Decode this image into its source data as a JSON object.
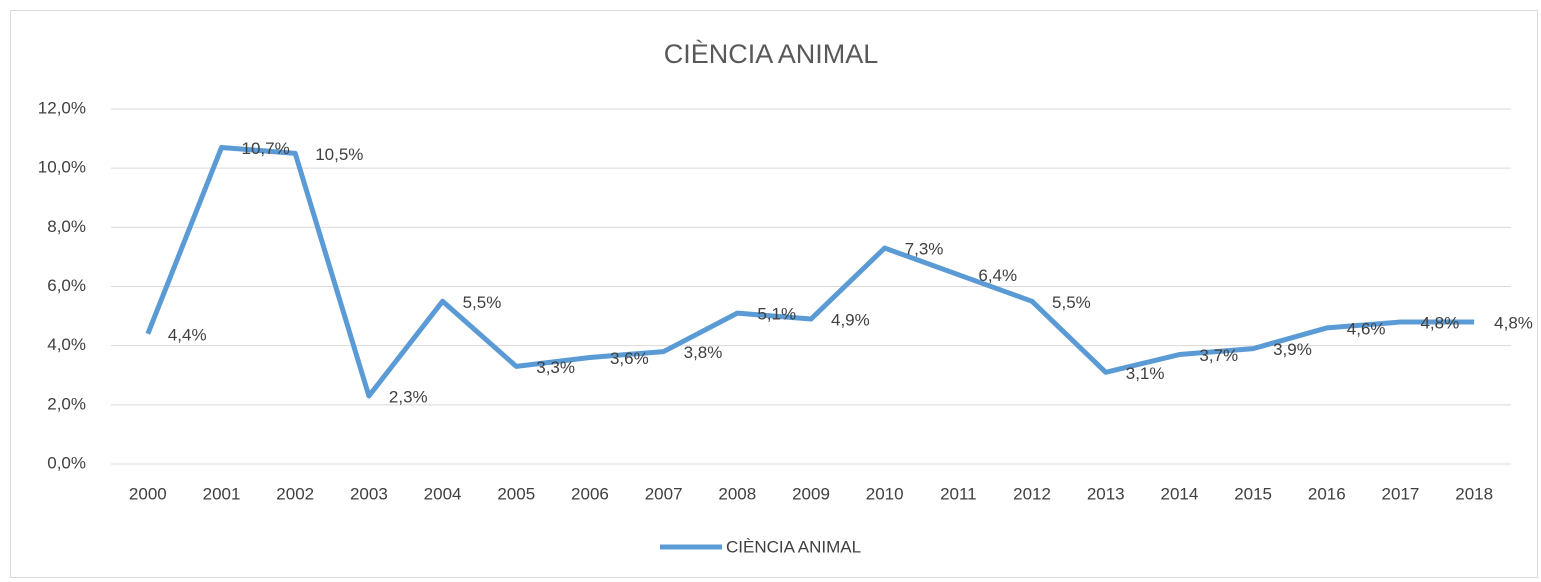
{
  "chart_data": {
    "type": "line",
    "title": "CIÈNCIA ANIMAL",
    "categories": [
      "2000",
      "2001",
      "2002",
      "2003",
      "2004",
      "2005",
      "2006",
      "2007",
      "2008",
      "2009",
      "2010",
      "2011",
      "2012",
      "2013",
      "2014",
      "2015",
      "2016",
      "2017",
      "2018"
    ],
    "series": [
      {
        "name": "CIÈNCIA ANIMAL",
        "color": "#5b9bd5",
        "values": [
          4.4,
          10.7,
          10.5,
          2.3,
          5.5,
          3.3,
          3.6,
          3.8,
          5.1,
          4.9,
          7.3,
          6.4,
          5.5,
          3.1,
          3.7,
          3.9,
          4.6,
          4.8,
          4.8
        ],
        "value_labels": [
          "4,4%",
          "10,7%",
          "10,5%",
          "2,3%",
          "5,5%",
          "3,3%",
          "3,6%",
          "3,8%",
          "5,1%",
          "4,9%",
          "7,3%",
          "6,4%",
          "5,5%",
          "3,1%",
          "3,7%",
          "3,9%",
          "4,6%",
          "4,8%",
          "4,8%"
        ]
      }
    ],
    "ylim": [
      0,
      12
    ],
    "yticks": [
      {
        "value": 0,
        "label": "0,0%"
      },
      {
        "value": 2,
        "label": "2,0%"
      },
      {
        "value": 4,
        "label": "4,0%"
      },
      {
        "value": 6,
        "label": "6,0%"
      },
      {
        "value": 8,
        "label": "8,0%"
      },
      {
        "value": 10,
        "label": "10,0%"
      },
      {
        "value": 12,
        "label": "12,0%"
      }
    ],
    "grid": true,
    "legend": "bottom"
  }
}
